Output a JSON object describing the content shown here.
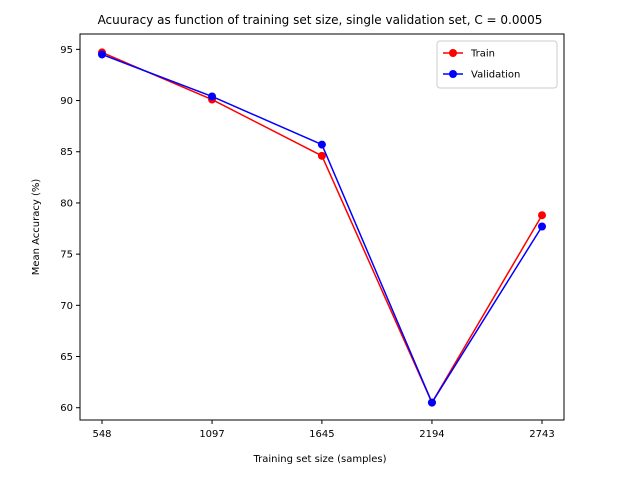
{
  "chart_data": {
    "type": "line",
    "title": "Acuuracy as function of training set size, single validation set, C = 0.0005",
    "xlabel": "Training set size (samples)",
    "ylabel": "Mean Accuracy (%)",
    "x": [
      548,
      1097,
      1645,
      2194,
      2743
    ],
    "x_tick_labels": [
      "548",
      "1097",
      "1645",
      "2194",
      "2743"
    ],
    "y_ticks": [
      60,
      65,
      70,
      75,
      80,
      85,
      90,
      95
    ],
    "ylim": [
      58.8,
      96.5
    ],
    "legend_position": "top-right",
    "grid": false,
    "series": [
      {
        "name": "Train",
        "color": "#ff0000",
        "values": [
          94.7,
          90.1,
          84.6,
          60.5,
          78.8
        ]
      },
      {
        "name": "Validation",
        "color": "#0000ff",
        "values": [
          94.5,
          90.4,
          85.7,
          60.5,
          77.7
        ]
      }
    ]
  }
}
